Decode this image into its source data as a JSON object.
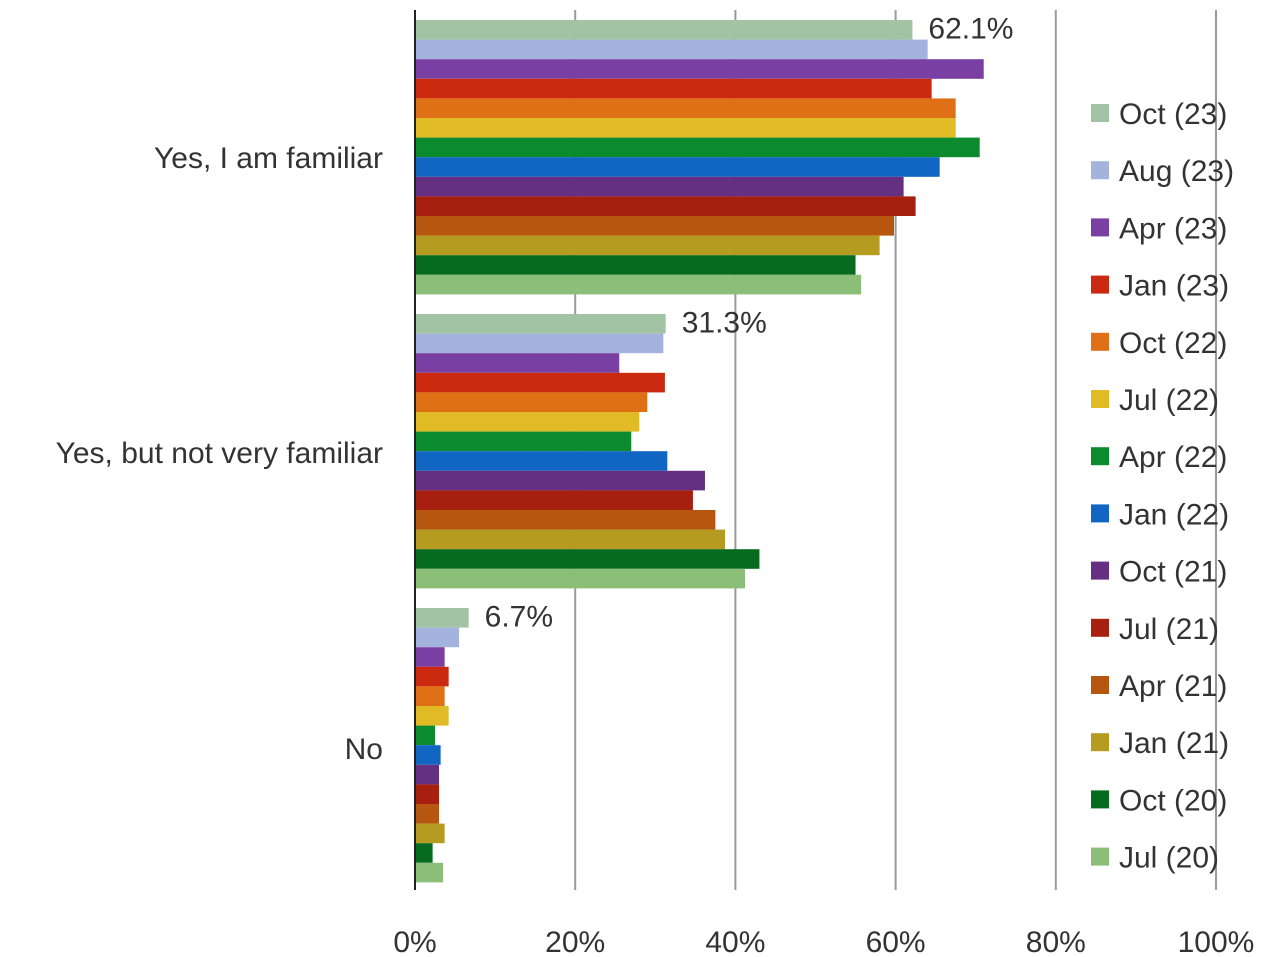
{
  "chart_data": {
    "type": "bar",
    "orientation": "horizontal",
    "categories": [
      "Yes, I am familiar",
      "Yes, but not very familiar",
      "No"
    ],
    "xlim": [
      0,
      100
    ],
    "x_ticks": [
      "0%",
      "20%",
      "40%",
      "60%",
      "80%",
      "100%"
    ],
    "grid": true,
    "legend_position": "right",
    "series": [
      {
        "name": "Oct (23)",
        "color": "#a3c4a4",
        "values": [
          62.1,
          31.3,
          6.7
        ],
        "labels": [
          "62.1%",
          "31.3%",
          "6.7%"
        ]
      },
      {
        "name": "Aug (23)",
        "color": "#a4b3dd",
        "values": [
          64.0,
          31.0,
          5.5
        ]
      },
      {
        "name": "Apr (23)",
        "color": "#7a3fa3",
        "values": [
          71.0,
          25.5,
          3.7
        ]
      },
      {
        "name": "Jan (23)",
        "color": "#cc2a10",
        "values": [
          64.5,
          31.2,
          4.2
        ]
      },
      {
        "name": "Oct (22)",
        "color": "#e07015",
        "values": [
          67.5,
          29.0,
          3.7
        ]
      },
      {
        "name": "Jul (22)",
        "color": "#e0bb26",
        "values": [
          67.5,
          28.0,
          4.2
        ]
      },
      {
        "name": "Apr (22)",
        "color": "#0b8a2e",
        "values": [
          70.5,
          27.0,
          2.5
        ]
      },
      {
        "name": "Jan (22)",
        "color": "#1166c4",
        "values": [
          65.5,
          31.5,
          3.2
        ]
      },
      {
        "name": "Oct (21)",
        "color": "#652f82",
        "values": [
          61.0,
          36.2,
          3.0
        ]
      },
      {
        "name": "Jul (21)",
        "color": "#a7200f",
        "values": [
          62.5,
          34.7,
          3.0
        ]
      },
      {
        "name": "Apr (21)",
        "color": "#b7560f",
        "values": [
          59.8,
          37.5,
          3.0
        ]
      },
      {
        "name": "Jan (21)",
        "color": "#b59b20",
        "values": [
          58.0,
          38.7,
          3.7
        ]
      },
      {
        "name": "Oct (20)",
        "color": "#076b1f",
        "values": [
          55.0,
          43.0,
          2.2
        ]
      },
      {
        "name": "Jul (20)",
        "color": "#8bbf78",
        "values": [
          55.7,
          41.2,
          3.5
        ]
      }
    ]
  }
}
